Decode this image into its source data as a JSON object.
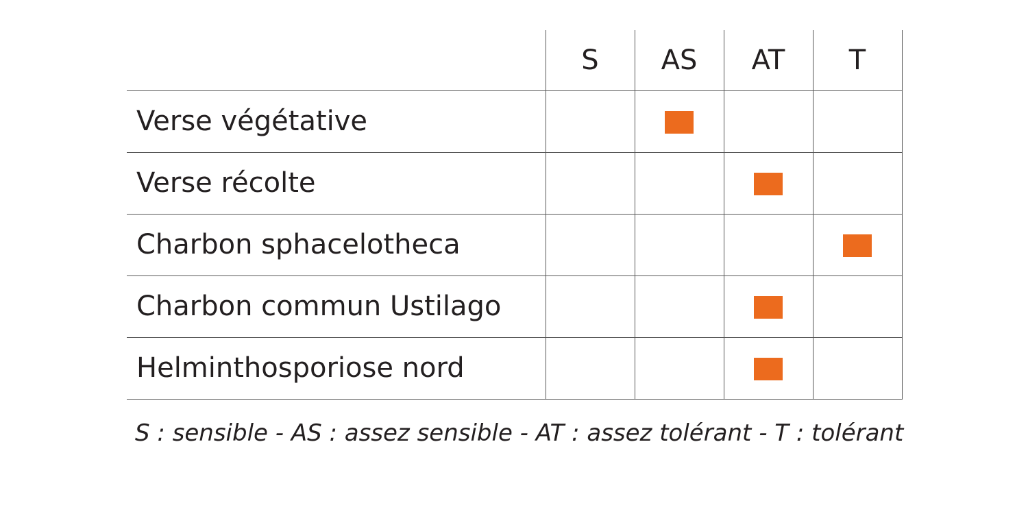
{
  "chart_data": {
    "type": "table",
    "columns": [
      "S",
      "AS",
      "AT",
      "T"
    ],
    "rows": [
      {
        "label": "Verse végétative",
        "value": "AS"
      },
      {
        "label": "Verse récolte",
        "value": "AT"
      },
      {
        "label": "Charbon sphacelotheca",
        "value": "T"
      },
      {
        "label": "Charbon commun Ustilago",
        "value": "AT"
      },
      {
        "label": "Helminthosporiose nord",
        "value": "AT"
      }
    ],
    "legend": "S : sensible - AS : assez sensible - AT : assez tolérant - T : tolérant"
  },
  "colors": {
    "marker": "#ec6b1e",
    "grid": "#555555",
    "text": "#231f20"
  }
}
